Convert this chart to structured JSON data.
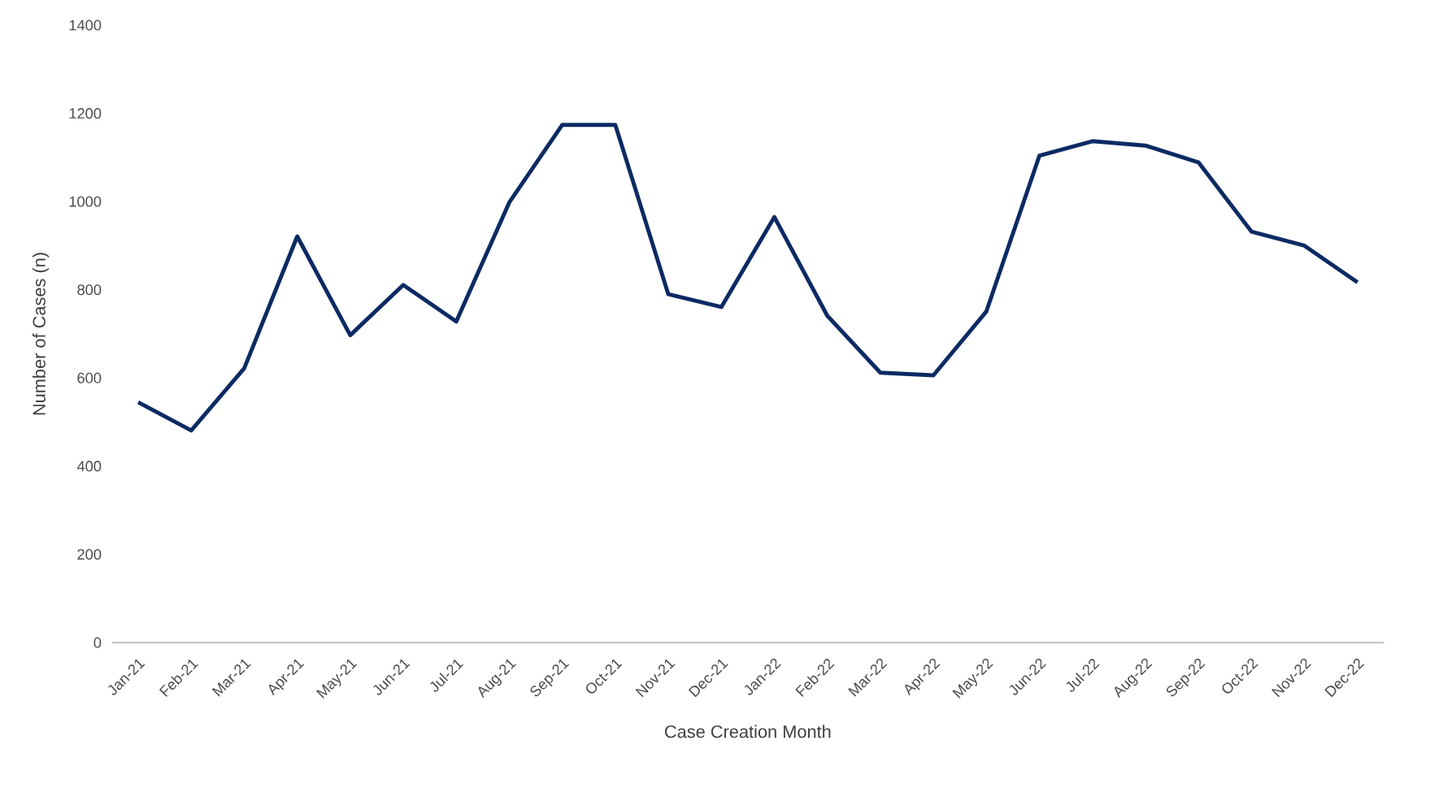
{
  "chart_data": {
    "type": "line",
    "xlabel": "Case Creation Month",
    "ylabel": "Number of Cases (n)",
    "categories": [
      "Jan-21",
      "Feb-21",
      "Mar-21",
      "Apr-21",
      "May-21",
      "Jun-21",
      "Jul-21",
      "Aug-21",
      "Sep-21",
      "Oct-21",
      "Nov-21",
      "Dec-21",
      "Jan-22",
      "Feb-22",
      "Mar-22",
      "Apr-22",
      "May-22",
      "Jun-22",
      "Jul-22",
      "Aug-22",
      "Sep-22",
      "Oct-22",
      "Nov-22",
      "Dec-22"
    ],
    "series": [
      {
        "color": "#0c2a63",
        "values": [
          545,
          481,
          622,
          921,
          697,
          811,
          728,
          998,
          1174,
          1174,
          790,
          761,
          965,
          741,
          612,
          606,
          751,
          1104,
          1137,
          1127,
          1089,
          932,
          900,
          817
        ]
      }
    ],
    "ylim": [
      0,
      1400
    ],
    "yticks": [
      0,
      200,
      400,
      600,
      800,
      1000,
      1200,
      1400
    ]
  }
}
